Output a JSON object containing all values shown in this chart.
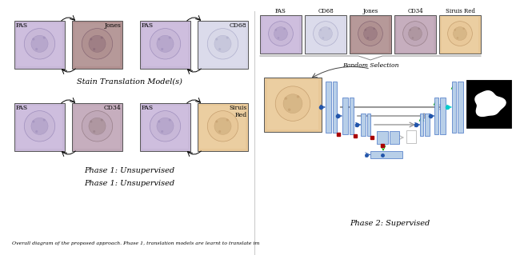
{
  "phase1_label": "Phase 1: Unsupervised",
  "phase2_label": "Phase 2: Supervised",
  "caption": "Overall diagram of the proposed approach. Phase 1, translation models are learnt to translate im",
  "stain_model_label": "Stain Translation Model(s)",
  "phase2_stains": [
    "PAS",
    "CD68",
    "Jones",
    "CD34",
    "Siruis Red"
  ],
  "random_selection_label": "Random Selection",
  "blue_light": "#b8cfe8",
  "blue_mid": "#7bafd4",
  "blue_dark": "#2255aa",
  "red_color": "#aa0000",
  "green_color": "#00aa00",
  "gray_arrow": "#999999",
  "white_box": "#f0f0f0",
  "pas_bg": "#c8b8d8",
  "jones_bg": "#a08898",
  "cd68_bg": "#d8d8e8",
  "cd34_bg": "#c8b0c0",
  "sirius_bg": "#e8c8a0"
}
